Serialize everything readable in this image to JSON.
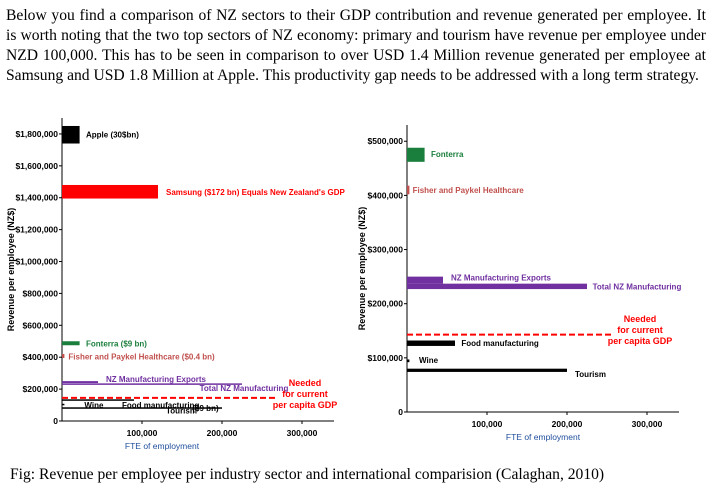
{
  "intro_text": "Below you find a comparison of NZ sectors to their GDP contribution and revenue generated per employee. It is worth noting that the two top sectors of NZ economy: primary and tourism have revenue per employee under NZD 100,000. This has to be seen in comparison to over USD 1.4 Million revenue generated per employee at Samsung and USD 1.8 Million at Apple. This productivity gap needs to be addressed with a long term strategy.",
  "caption": "Fig: Revenue per employee per industry sector and international comparision (Calaghan, 2010)",
  "chart_data": [
    {
      "type": "bar",
      "orientation": "horizontal-floating",
      "ylabel": "Revenue per employee (NZ$)",
      "xlabel": "FTE of employment",
      "ylim": [
        0,
        1900000
      ],
      "xlim": [
        0,
        340000
      ],
      "yticks": [
        0,
        200000,
        400000,
        600000,
        800000,
        1000000,
        1200000,
        1400000,
        1600000,
        1800000
      ],
      "ytick_labels": [
        "0",
        "$200,000",
        "$400,000",
        "$600,000",
        "$800,000",
        "$1,000,000",
        "$1,200,000",
        "$1,400,000",
        "$1,600,000",
        "$1,800,000"
      ],
      "xticks": [
        100000,
        200000,
        300000
      ],
      "xtick_labels": [
        "100,000",
        "200,000",
        "300,000"
      ],
      "series": [
        {
          "name": "Apple ($30$bn)",
          "label": "Apple (30$bn)",
          "x_start": 0,
          "x_end": 22000,
          "y_low": 1740000,
          "y_high": 1850000,
          "color": "#000000",
          "label_color": "#000000",
          "label_x": 30000,
          "label_y": 1795000
        },
        {
          "name": "Samsung ($172 bn)",
          "label": "Samsung ($172 bn)  Equals New Zealand's GDP",
          "x_start": 0,
          "x_end": 120000,
          "y_low": 1395000,
          "y_high": 1480000,
          "color": "#ff0000",
          "label_color": "#ff0000",
          "label_x": 130000,
          "label_y": 1437000
        },
        {
          "name": "Fonterra ($9 bn)",
          "label": "Fonterra ($9 bn)",
          "x_start": 0,
          "x_end": 22000,
          "y_low": 475000,
          "y_high": 500000,
          "color": "#1a7f3c",
          "label_color": "#1a7f3c",
          "label_x": 30000,
          "label_y": 487000
        },
        {
          "name": "Fisher and Paykel Healthcare ($0.4 bn)",
          "label": "Fisher and Paykel Healthcare ($0.4 bn)",
          "x_start": 0,
          "x_end": 3000,
          "y_low": 395000,
          "y_high": 420000,
          "color": "#c0504d",
          "label_color": "#c0504d",
          "label_x": 8000,
          "label_y": 405000
        },
        {
          "name": "NZ Manufacturing Exports",
          "label": "NZ Manufacturing Exports",
          "x_start": 0,
          "x_end": 45000,
          "y_low": 238000,
          "y_high": 250000,
          "color": "#7030a0",
          "label_color": "#7030a0",
          "label_x": 55000,
          "label_y": 262000
        },
        {
          "name": "Total NZ Manufacturing",
          "label": "Total NZ Manufacturing",
          "x_start": 0,
          "x_end": 225000,
          "y_low": 230000,
          "y_high": 236000,
          "color": "#7030a0",
          "label_color": "#7030a0",
          "label_x": 172000,
          "label_y": 208000
        },
        {
          "name": "Food manufacturing ($9 bn)",
          "label": "Food manufacturing",
          "x_start": 0,
          "x_end": 90000,
          "y_low": 128000,
          "y_high": 136000,
          "color": "#000000",
          "label_color": "#000000",
          "label_x": 75000,
          "label_y": 100000
        },
        {
          "name": "Wine",
          "label": "Wine",
          "x_start": 0,
          "x_end": 3000,
          "y_low": 100000,
          "y_high": 108000,
          "color": "#000000",
          "label_color": "#000000",
          "label_x": 28000,
          "label_y": 100000
        },
        {
          "name": "Tourism",
          "label": "Tourism",
          "x_start": 0,
          "x_end": 200000,
          "y_low": 80000,
          "y_high": 86000,
          "color": "#000000",
          "label_color": "#000000",
          "label_x": 130000,
          "label_y": 65000
        }
      ],
      "extra_labels": [
        {
          "text": "($9 bn)",
          "x": 163000,
          "y": 80000,
          "color": "#000000"
        }
      ],
      "reference_line": {
        "label_lines": [
          "Needed",
          "for current",
          "per capita GDP"
        ],
        "y": 145000,
        "color": "#ff0000",
        "style": "dashed"
      }
    },
    {
      "type": "bar",
      "orientation": "horizontal-floating",
      "ylabel": "Revenue per employee (NZ$)",
      "xlabel": "FTE of employment",
      "ylim": [
        0,
        530000
      ],
      "xlim": [
        0,
        340000
      ],
      "yticks": [
        0,
        100000,
        200000,
        300000,
        400000,
        500000
      ],
      "ytick_labels": [
        "0",
        "$100,000",
        "$200,000",
        "$300,000",
        "$400,000",
        "$500,000"
      ],
      "xticks": [
        100000,
        200000,
        300000
      ],
      "xtick_labels": [
        "100,000",
        "200,000",
        "300,000"
      ],
      "series": [
        {
          "name": "Fonterra",
          "label": "Fonterra",
          "x_start": 0,
          "x_end": 22000,
          "y_low": 462000,
          "y_high": 488000,
          "color": "#1a7f3c",
          "label_color": "#1a7f3c",
          "label_x": 30000,
          "label_y": 476000
        },
        {
          "name": "Fisher and Paykel Healthcare",
          "label": "Fisher and Paykel Healthcare",
          "x_start": 0,
          "x_end": 3000,
          "y_low": 402000,
          "y_high": 418000,
          "color": "#c0504d",
          "label_color": "#c0504d",
          "label_x": 7000,
          "label_y": 410000
        },
        {
          "name": "NZ Manufacturing Exports",
          "label": "NZ Manufacturing Exports",
          "x_start": 0,
          "x_end": 45000,
          "y_low": 237000,
          "y_high": 250000,
          "color": "#7030a0",
          "label_color": "#7030a0",
          "label_x": 55000,
          "label_y": 248000
        },
        {
          "name": "Total NZ Manufacturing",
          "label": "Total NZ Manufacturing",
          "x_start": 0,
          "x_end": 225000,
          "y_low": 227000,
          "y_high": 237000,
          "color": "#7030a0",
          "label_color": "#7030a0",
          "label_x": 232000,
          "label_y": 232000
        },
        {
          "name": "Food manufacturing",
          "label": "Food manufacturing",
          "x_start": 0,
          "x_end": 60000,
          "y_low": 122000,
          "y_high": 132000,
          "color": "#000000",
          "label_color": "#000000",
          "label_x": 68000,
          "label_y": 127000
        },
        {
          "name": "Wine",
          "label": "Wine",
          "x_start": 0,
          "x_end": 3000,
          "y_low": 92000,
          "y_high": 97000,
          "color": "#000000",
          "label_color": "#000000",
          "label_x": 15000,
          "label_y": 96000
        },
        {
          "name": "Tourism",
          "label": "Tourism",
          "x_start": 0,
          "x_end": 200000,
          "y_low": 74000,
          "y_high": 80000,
          "color": "#000000",
          "label_color": "#000000",
          "label_x": 210000,
          "label_y": 70000
        }
      ],
      "extra_labels": [],
      "reference_line": {
        "label_lines": [
          "Needed",
          "for current",
          "per capita GDP"
        ],
        "y": 143000,
        "color": "#ff0000",
        "style": "dashed"
      }
    }
  ]
}
